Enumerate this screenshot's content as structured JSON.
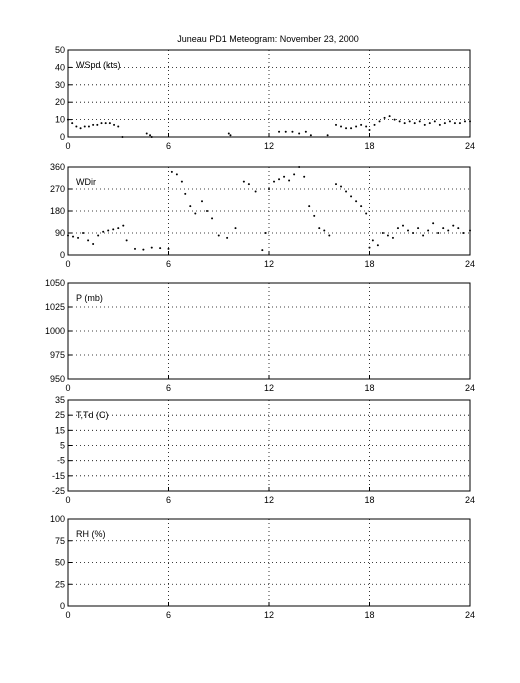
{
  "title": "Juneau PD1 Meteogram:   November 23, 2000",
  "chart_data": [
    {
      "type": "scatter",
      "label": "WSpd (kts)",
      "xlim": [
        0,
        24
      ],
      "ylim": [
        0,
        50
      ],
      "xticks": [
        0,
        6,
        12,
        18,
        24
      ],
      "yticks": [
        0,
        10,
        20,
        30,
        40,
        50
      ],
      "grid": true,
      "series": [
        {
          "x": [
            0,
            0.25,
            0.5,
            0.75,
            1.0,
            1.25,
            1.5,
            1.75,
            2.0,
            2.25,
            2.5,
            2.75,
            3.0,
            3.25,
            4.7,
            4.9,
            5.0,
            9.6,
            9.7,
            12.6,
            13.0,
            13.4,
            13.8,
            14.2,
            14.5,
            15.5,
            16.0,
            16.3,
            16.6,
            16.9,
            17.2,
            17.5,
            17.8,
            18.0,
            18.3,
            18.6,
            18.9,
            19.2,
            19.5,
            19.8,
            20.1,
            20.4,
            20.7,
            21.0,
            21.3,
            21.6,
            21.9,
            22.2,
            22.5,
            22.8,
            23.1,
            23.4,
            23.7,
            24.0
          ],
          "y": [
            10,
            8,
            6,
            5,
            6,
            6,
            7,
            7,
            8,
            8,
            8,
            7,
            6,
            0,
            2,
            1,
            0,
            2,
            1,
            3,
            3,
            3,
            2,
            3,
            1,
            1,
            7,
            6,
            5,
            5,
            6,
            7,
            6,
            4,
            7,
            9,
            11,
            12,
            10,
            9,
            8,
            9,
            8,
            9,
            7,
            8,
            9,
            7,
            8,
            9,
            8,
            8,
            9,
            9
          ]
        }
      ]
    },
    {
      "type": "scatter",
      "label": "WDir",
      "xlim": [
        0,
        24
      ],
      "ylim": [
        0,
        360
      ],
      "xticks": [
        0,
        6,
        12,
        18,
        24
      ],
      "yticks": [
        0,
        90,
        180,
        270,
        360
      ],
      "grid": true,
      "series": [
        {
          "x": [
            0,
            0.3,
            0.6,
            0.9,
            1.2,
            1.5,
            1.8,
            2.1,
            2.4,
            2.7,
            3.0,
            3.3,
            3.5,
            4.0,
            4.5,
            5.0,
            5.5,
            6.0,
            6.2,
            6.5,
            6.8,
            7.0,
            7.3,
            7.6,
            8.0,
            8.3,
            8.6,
            9.0,
            9.5,
            10.0,
            10.5,
            10.8,
            11.2,
            11.6,
            11.8,
            12.0,
            12.3,
            12.6,
            12.9,
            13.2,
            13.5,
            13.8,
            14.1,
            14.4,
            14.7,
            15.0,
            15.3,
            15.6,
            16.0,
            16.3,
            16.6,
            16.9,
            17.2,
            17.5,
            17.8,
            18.0,
            18.2,
            18.5,
            18.8,
            19.1,
            19.4,
            19.7,
            20.0,
            20.3,
            20.6,
            20.9,
            21.2,
            21.5,
            21.8,
            22.1,
            22.4,
            22.7,
            23.0,
            23.3,
            23.6,
            24.0
          ],
          "y": [
            80,
            75,
            70,
            90,
            60,
            45,
            80,
            95,
            100,
            105,
            110,
            120,
            60,
            25,
            22,
            30,
            28,
            25,
            340,
            330,
            300,
            250,
            200,
            170,
            220,
            180,
            150,
            80,
            70,
            110,
            300,
            290,
            260,
            20,
            90,
            270,
            300,
            310,
            320,
            305,
            330,
            360,
            320,
            200,
            160,
            110,
            100,
            80,
            290,
            280,
            260,
            240,
            220,
            200,
            170,
            30,
            60,
            40,
            90,
            80,
            70,
            110,
            120,
            100,
            90,
            110,
            80,
            100,
            130,
            90,
            110,
            100,
            120,
            110,
            90,
            100
          ]
        }
      ]
    },
    {
      "type": "scatter",
      "label": "P (mb)",
      "xlim": [
        0,
        24
      ],
      "ylim": [
        950,
        1050
      ],
      "xticks": [
        0,
        6,
        12,
        18,
        24
      ],
      "yticks": [
        950,
        975,
        1000,
        1025,
        1050
      ],
      "grid": true,
      "series": []
    },
    {
      "type": "scatter",
      "label": "T,Td (C)",
      "xlim": [
        0,
        24
      ],
      "ylim": [
        -25,
        35
      ],
      "xticks": [
        0,
        6,
        12,
        18,
        24
      ],
      "yticks": [
        -25,
        -15,
        -5,
        5,
        15,
        25,
        35
      ],
      "grid": true,
      "series": []
    },
    {
      "type": "scatter",
      "label": "RH (%)",
      "xlim": [
        0,
        24
      ],
      "ylim": [
        0,
        100
      ],
      "xticks": [
        0,
        6,
        12,
        18,
        24
      ],
      "yticks": [
        0,
        25,
        50,
        75,
        100
      ],
      "grid": true,
      "series": []
    }
  ]
}
